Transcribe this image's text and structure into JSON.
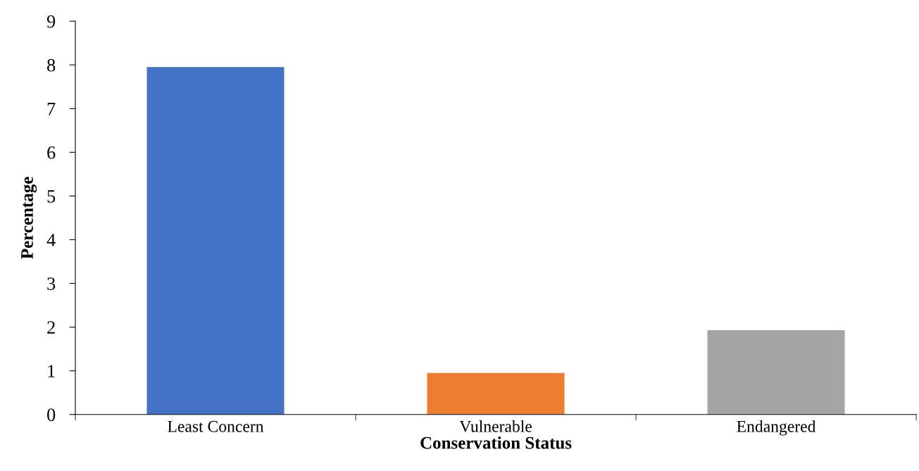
{
  "chart_data": {
    "type": "bar",
    "xlabel": "Conservation Status",
    "ylabel": "Percentage",
    "categories": [
      "Least Concern",
      "Vulnerable",
      "Endangered"
    ],
    "values": [
      7.95,
      0.95,
      1.93
    ],
    "colors": [
      "#4472c4",
      "#ed7d31",
      "#a5a5a5"
    ],
    "ylim": [
      0,
      9
    ],
    "yticks": [
      0,
      1,
      2,
      3,
      4,
      5,
      6,
      7,
      8,
      9
    ],
    "grid": false,
    "legend": false
  }
}
